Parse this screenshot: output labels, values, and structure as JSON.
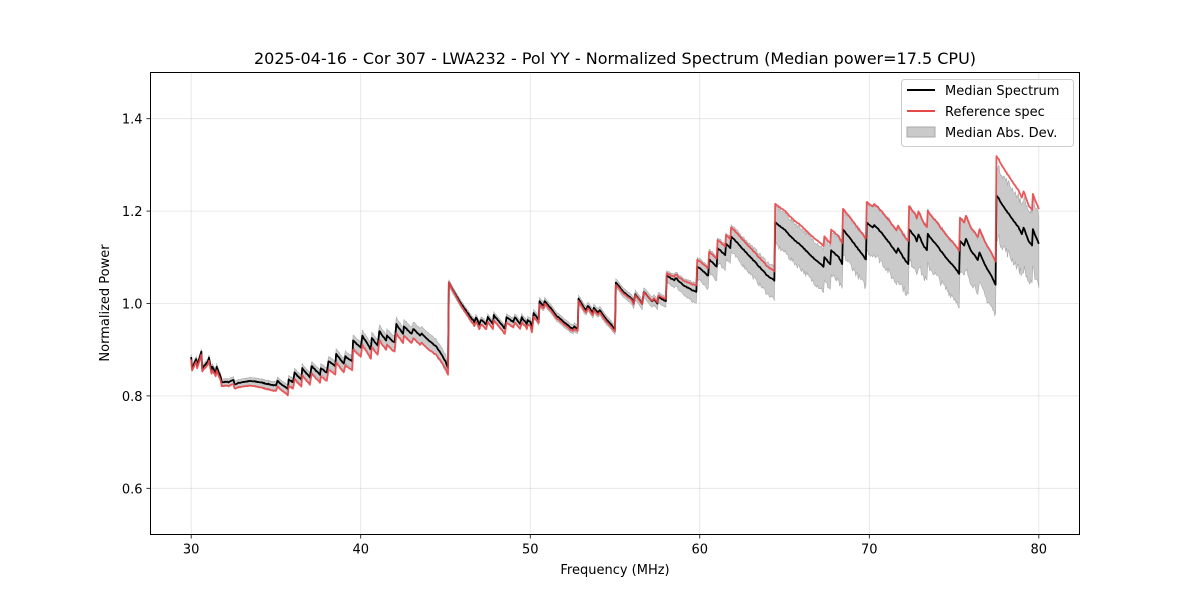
{
  "chart_data": {
    "type": "line",
    "title": "2025-04-16 - Cor 307 - LWA232 - Pol YY - Normalized Spectrum (Median power=17.5 CPU)",
    "xlabel": "Frequency (MHz)",
    "ylabel": "Normalized Power",
    "xlim": [
      27.6,
      82.4
    ],
    "ylim": [
      0.5,
      1.5
    ],
    "xticks": [
      30,
      40,
      50,
      60,
      70,
      80
    ],
    "xtick_labels": [
      "30",
      "40",
      "50",
      "60",
      "70",
      "80"
    ],
    "yticks": [
      0.6,
      0.8,
      1.0,
      1.2,
      1.4
    ],
    "ytick_labels": [
      "0.6",
      "0.8",
      "1.0",
      "1.2",
      "1.4"
    ],
    "grid": true,
    "legend_position": "top-right",
    "legend": [
      {
        "label": "Median Spectrum",
        "kind": "line",
        "color": "#000000"
      },
      {
        "label": "Reference spec",
        "kind": "line",
        "color": "#e8474a"
      },
      {
        "label": "Median Abs. Dev.",
        "kind": "band",
        "color": "#bdbdbd"
      }
    ],
    "series": [
      {
        "name": "Median Spectrum",
        "color": "#000000",
        "points": [
          [
            30.0,
            0.885
          ],
          [
            30.05,
            0.86
          ],
          [
            30.3,
            0.88
          ],
          [
            30.35,
            0.865
          ],
          [
            30.6,
            0.895
          ],
          [
            30.65,
            0.86
          ],
          [
            31.0,
            0.875
          ],
          [
            31.05,
            0.882
          ],
          [
            31.2,
            0.855
          ],
          [
            31.25,
            0.862
          ],
          [
            31.45,
            0.85
          ],
          [
            31.5,
            0.862
          ],
          [
            31.75,
            0.84
          ],
          [
            31.8,
            0.83
          ],
          [
            32.2,
            0.83
          ],
          [
            32.5,
            0.835
          ],
          [
            32.55,
            0.825
          ],
          [
            33.0,
            0.83
          ],
          [
            33.5,
            0.832
          ],
          [
            34.0,
            0.83
          ],
          [
            34.5,
            0.826
          ],
          [
            35.0,
            0.822
          ],
          [
            35.1,
            0.832
          ],
          [
            35.7,
            0.815
          ],
          [
            35.75,
            0.835
          ],
          [
            36.0,
            0.83
          ],
          [
            36.1,
            0.85
          ],
          [
            36.5,
            0.835
          ],
          [
            36.55,
            0.86
          ],
          [
            37.0,
            0.84
          ],
          [
            37.1,
            0.865
          ],
          [
            37.6,
            0.845
          ],
          [
            37.65,
            0.86
          ],
          [
            38.0,
            0.85
          ],
          [
            38.1,
            0.875
          ],
          [
            38.5,
            0.865
          ],
          [
            38.55,
            0.89
          ],
          [
            39.0,
            0.87
          ],
          [
            39.1,
            0.885
          ],
          [
            39.5,
            0.875
          ],
          [
            39.55,
            0.92
          ],
          [
            40.0,
            0.905
          ],
          [
            40.1,
            0.93
          ],
          [
            40.6,
            0.9
          ],
          [
            40.65,
            0.925
          ],
          [
            41.0,
            0.91
          ],
          [
            41.1,
            0.94
          ],
          [
            41.5,
            0.92
          ],
          [
            41.55,
            0.93
          ],
          [
            42.0,
            0.915
          ],
          [
            42.1,
            0.955
          ],
          [
            42.5,
            0.935
          ],
          [
            42.55,
            0.95
          ],
          [
            43.0,
            0.935
          ],
          [
            43.1,
            0.945
          ],
          [
            43.5,
            0.93
          ],
          [
            43.6,
            0.935
          ],
          [
            44.0,
            0.92
          ],
          [
            44.5,
            0.905
          ],
          [
            45.0,
            0.875
          ],
          [
            45.15,
            0.86
          ],
          [
            45.2,
            1.045
          ],
          [
            45.5,
            1.025
          ],
          [
            46.0,
            0.995
          ],
          [
            46.5,
            0.97
          ],
          [
            46.7,
            0.96
          ],
          [
            46.8,
            0.97
          ],
          [
            47.0,
            0.955
          ],
          [
            47.1,
            0.965
          ],
          [
            47.4,
            0.955
          ],
          [
            47.5,
            0.97
          ],
          [
            47.8,
            0.955
          ],
          [
            47.85,
            0.975
          ],
          [
            48.3,
            0.955
          ],
          [
            48.5,
            0.945
          ],
          [
            48.6,
            0.97
          ],
          [
            49.0,
            0.96
          ],
          [
            49.1,
            0.97
          ],
          [
            49.4,
            0.955
          ],
          [
            49.5,
            0.97
          ],
          [
            49.8,
            0.955
          ],
          [
            49.85,
            0.965
          ],
          [
            50.0,
            0.96
          ],
          [
            50.1,
            0.945
          ],
          [
            50.2,
            0.98
          ],
          [
            50.5,
            0.965
          ],
          [
            50.55,
            1.005
          ],
          [
            50.8,
            0.995
          ],
          [
            50.85,
            1.005
          ],
          [
            51.2,
            0.99
          ],
          [
            51.5,
            0.975
          ],
          [
            52.0,
            0.96
          ],
          [
            52.5,
            0.945
          ],
          [
            52.6,
            0.95
          ],
          [
            52.8,
            0.945
          ],
          [
            52.85,
            1.01
          ],
          [
            53.2,
            0.99
          ],
          [
            53.3,
            0.985
          ],
          [
            53.4,
            0.995
          ],
          [
            53.7,
            0.98
          ],
          [
            53.75,
            0.99
          ],
          [
            54.0,
            0.98
          ],
          [
            54.1,
            0.985
          ],
          [
            54.5,
            0.965
          ],
          [
            55.0,
            0.945
          ],
          [
            55.05,
            1.045
          ],
          [
            55.5,
            1.025
          ],
          [
            56.0,
            1.01
          ],
          [
            56.1,
            1.0
          ],
          [
            56.2,
            1.02
          ],
          [
            56.6,
            1.0
          ],
          [
            56.7,
            1.025
          ],
          [
            57.2,
            1.005
          ],
          [
            57.3,
            1.01
          ],
          [
            57.5,
            1.0
          ],
          [
            57.55,
            1.015
          ],
          [
            58.0,
            1.005
          ],
          [
            58.05,
            1.06
          ],
          [
            58.5,
            1.05
          ],
          [
            58.6,
            1.055
          ],
          [
            59.0,
            1.04
          ],
          [
            59.5,
            1.03
          ],
          [
            59.8,
            1.025
          ],
          [
            59.85,
            1.08
          ],
          [
            60.2,
            1.07
          ],
          [
            60.5,
            1.06
          ],
          [
            60.55,
            1.095
          ],
          [
            61.0,
            1.08
          ],
          [
            61.05,
            1.12
          ],
          [
            61.5,
            1.105
          ],
          [
            61.55,
            1.13
          ],
          [
            61.8,
            1.12
          ],
          [
            61.85,
            1.145
          ],
          [
            62.5,
            1.12
          ],
          [
            63.0,
            1.1
          ],
          [
            63.5,
            1.08
          ],
          [
            64.0,
            1.06
          ],
          [
            64.4,
            1.05
          ],
          [
            64.45,
            1.175
          ],
          [
            65.0,
            1.16
          ],
          [
            65.5,
            1.14
          ],
          [
            66.0,
            1.125
          ],
          [
            66.5,
            1.105
          ],
          [
            67.0,
            1.09
          ],
          [
            67.3,
            1.08
          ],
          [
            67.35,
            1.1
          ],
          [
            67.7,
            1.085
          ],
          [
            67.75,
            1.115
          ],
          [
            68.2,
            1.1
          ],
          [
            68.4,
            1.085
          ],
          [
            68.45,
            1.16
          ],
          [
            69.0,
            1.135
          ],
          [
            69.5,
            1.11
          ],
          [
            69.8,
            1.095
          ],
          [
            69.85,
            1.175
          ],
          [
            70.2,
            1.165
          ],
          [
            70.3,
            1.17
          ],
          [
            70.8,
            1.15
          ],
          [
            71.2,
            1.13
          ],
          [
            71.6,
            1.11
          ],
          [
            71.7,
            1.12
          ],
          [
            72.0,
            1.1
          ],
          [
            72.3,
            1.085
          ],
          [
            72.35,
            1.16
          ],
          [
            72.7,
            1.145
          ],
          [
            72.8,
            1.135
          ],
          [
            72.9,
            1.15
          ],
          [
            73.2,
            1.125
          ],
          [
            73.4,
            1.115
          ],
          [
            73.45,
            1.15
          ],
          [
            74.0,
            1.125
          ],
          [
            74.5,
            1.1
          ],
          [
            75.0,
            1.08
          ],
          [
            75.3,
            1.065
          ],
          [
            75.35,
            1.135
          ],
          [
            75.6,
            1.125
          ],
          [
            75.7,
            1.14
          ],
          [
            76.0,
            1.115
          ],
          [
            76.3,
            1.1
          ],
          [
            76.4,
            1.095
          ],
          [
            76.5,
            1.11
          ],
          [
            76.8,
            1.085
          ],
          [
            77.2,
            1.06
          ],
          [
            77.45,
            1.04
          ],
          [
            77.5,
            1.235
          ],
          [
            78.0,
            1.205
          ],
          [
            78.5,
            1.18
          ],
          [
            78.8,
            1.165
          ],
          [
            79.0,
            1.15
          ],
          [
            79.1,
            1.165
          ],
          [
            79.4,
            1.135
          ],
          [
            79.6,
            1.125
          ],
          [
            79.65,
            1.16
          ],
          [
            80.0,
            1.13
          ]
        ]
      },
      {
        "name": "Reference spec",
        "color": "#e8474a",
        "offset_points": [
          [
            30.0,
            -0.005
          ],
          [
            31.8,
            -0.008
          ],
          [
            35.0,
            -0.012
          ],
          [
            38.0,
            -0.018
          ],
          [
            40.0,
            -0.02
          ],
          [
            44.0,
            -0.02
          ],
          [
            45.15,
            -0.015
          ],
          [
            45.2,
            0.0
          ],
          [
            47.0,
            -0.01
          ],
          [
            49.0,
            -0.012
          ],
          [
            51.0,
            -0.005
          ],
          [
            53.0,
            -0.005
          ],
          [
            55.0,
            -0.005
          ],
          [
            57.0,
            0.0
          ],
          [
            58.0,
            0.005
          ],
          [
            60.0,
            0.015
          ],
          [
            62.0,
            0.02
          ],
          [
            64.4,
            0.02
          ],
          [
            64.45,
            0.04
          ],
          [
            67.0,
            0.045
          ],
          [
            70.0,
            0.045
          ],
          [
            72.0,
            0.05
          ],
          [
            75.0,
            0.05
          ],
          [
            77.45,
            0.05
          ],
          [
            77.5,
            0.085
          ],
          [
            80.0,
            0.075
          ]
        ]
      },
      {
        "name": "Median Abs. Dev.",
        "color": "#bdbdbd",
        "halfwidth_points": [
          [
            30.0,
            0.006
          ],
          [
            35.0,
            0.008
          ],
          [
            40.0,
            0.012
          ],
          [
            43.0,
            0.015
          ],
          [
            45.0,
            0.015
          ],
          [
            45.2,
            0.006
          ],
          [
            50.0,
            0.008
          ],
          [
            55.0,
            0.008
          ],
          [
            58.0,
            0.01
          ],
          [
            60.0,
            0.02
          ],
          [
            62.0,
            0.025
          ],
          [
            64.4,
            0.03
          ],
          [
            64.45,
            0.035
          ],
          [
            68.0,
            0.04
          ],
          [
            70.0,
            0.045
          ],
          [
            72.0,
            0.05
          ],
          [
            75.0,
            0.05
          ],
          [
            77.45,
            0.05
          ],
          [
            77.5,
            0.065
          ],
          [
            80.0,
            0.065
          ]
        ]
      }
    ]
  }
}
